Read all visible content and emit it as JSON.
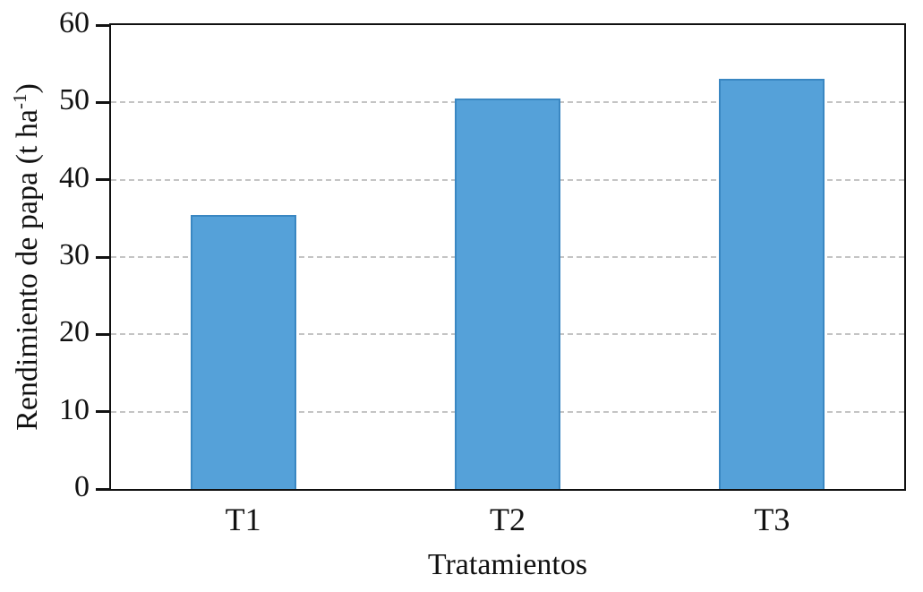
{
  "chart_data": {
    "type": "bar",
    "title": "",
    "categories": [
      "T1",
      "T2",
      "T3"
    ],
    "values": [
      35.5,
      50.5,
      53
    ],
    "xlabel": "Tratamientos",
    "ylabel": "Rendimiento de papa (t ha-1)",
    "ylabel_parts": {
      "prefix": "Rendimiento de papa (t ha",
      "sup": "-1",
      "suffix": ")"
    },
    "ylim": [
      0,
      60
    ],
    "ytick_step": 10,
    "yticks": [
      0,
      10,
      20,
      30,
      40,
      50,
      60
    ],
    "grid": "horizontal-dashed",
    "legend": "none",
    "bar_width_fraction": 0.4,
    "bar_color": "#55a1d9",
    "bar_border_color": "#3a87c2",
    "gridline_color": "#c4c4c4",
    "axis_color": "#111111"
  }
}
